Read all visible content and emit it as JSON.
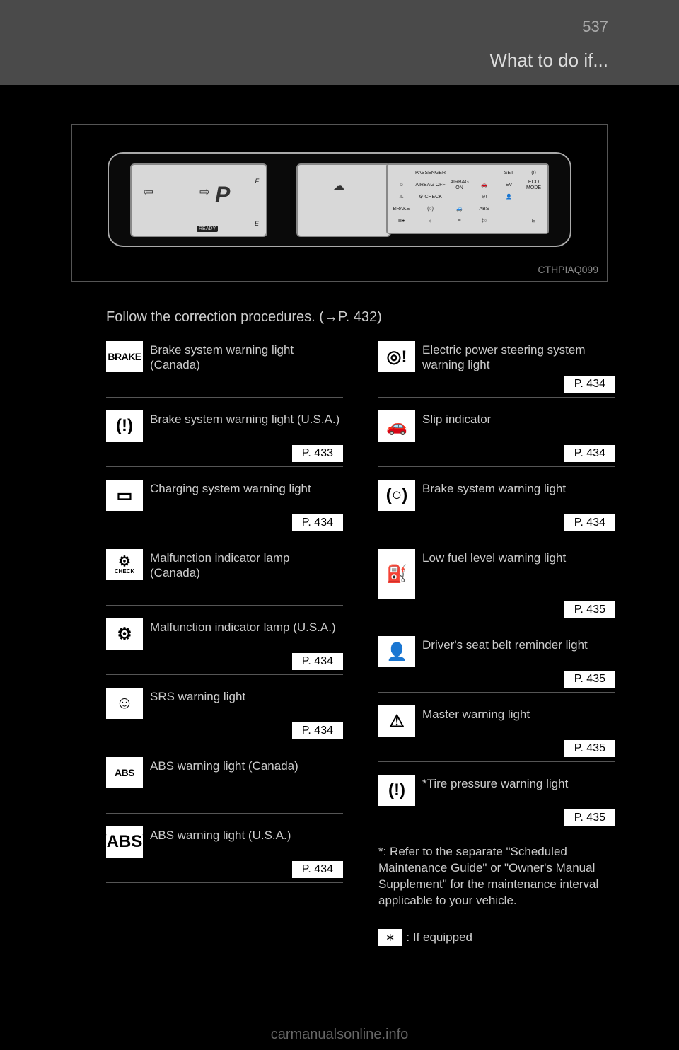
{
  "page": {
    "number": "537",
    "header": "What to do if...",
    "footer_watermark": "carmanualsonline.info"
  },
  "figure": {
    "code": "CTHPIAQ099",
    "gear": "P",
    "ready": "READY",
    "fuel_full": "F",
    "fuel_empty": "E",
    "right_labels": [
      "",
      "PASSENGER",
      "",
      "",
      "SET",
      "(!)",
      "☺",
      "AIRBAG\nOFF",
      "AIRBAG\nON",
      "🚗",
      "EV",
      "ECO\nMODE",
      "⚠",
      "⚙\nCHECK",
      "",
      "⊖!",
      "👤",
      "",
      "BRAKE",
      "(○)",
      "🚙",
      "ABS",
      "",
      "",
      "≣●",
      "☼",
      "≡",
      "‡○",
      "",
      "⊟"
    ]
  },
  "intro": "Follow the correction procedures. (→P. 432)",
  "left_col": [
    {
      "icon_text": "BRAKE",
      "label": "Brake system warning light (Canada)",
      "page": "",
      "kind": "txt"
    },
    {
      "icon_text": "(!)",
      "label": "Brake system warning light (U.S.A.)",
      "page": "P. 433",
      "kind": "sym"
    },
    {
      "icon_text": "▭",
      "label": "Charging system warning light",
      "page": "P. 434",
      "kind": "sym"
    },
    {
      "icon_text": "⚙",
      "sub": "CHECK",
      "label": "Malfunction indicator lamp (Canada)",
      "page": "",
      "kind": "sym"
    },
    {
      "icon_text": "⚙",
      "label": "Malfunction indicator lamp (U.S.A.)",
      "page": "P. 434",
      "kind": "sym"
    },
    {
      "icon_text": "☺",
      "label": "SRS warning light",
      "page": "P. 434",
      "kind": "sym"
    },
    {
      "icon_text": "ABS",
      "label": "ABS warning light (Canada)",
      "page": "",
      "kind": "txt"
    },
    {
      "icon_text": "(ABS)",
      "label": "ABS warning light (U.S.A.)",
      "page": "P. 434",
      "kind": "sym"
    }
  ],
  "right_col": [
    {
      "icon_text": "◎!",
      "label": "Electric power steering system warning light",
      "page": "P. 434",
      "kind": "sym"
    },
    {
      "icon_text": "🚗",
      "label": "Slip indicator",
      "page": "P. 434",
      "kind": "sym"
    },
    {
      "icon_text": "(○)",
      "label": "Brake system warning light",
      "page": "P. 434",
      "kind": "sym"
    },
    {
      "icon_text": "⛽",
      "label": "Low fuel level warning light",
      "page": "P. 435",
      "kind": "sym",
      "tall": true
    },
    {
      "icon_text": "👤",
      "label": "Driver's seat belt reminder light",
      "page": "P. 435",
      "kind": "sym"
    },
    {
      "icon_text": "⚠",
      "label": "Master warning light",
      "page": "P. 435",
      "kind": "sym"
    },
    {
      "icon_text": "(!)",
      "label": "Tire pressure warning light",
      "page": "P. 435",
      "kind": "sym",
      "star": true
    }
  ],
  "note": "*: Refer to the separate \"Scheduled Maintenance Guide\" or \"Owner's Manual Supplement\" for the maintenance interval applicable to your vehicle.",
  "asterisk": ": If equipped",
  "asterisk_mark": "∗"
}
